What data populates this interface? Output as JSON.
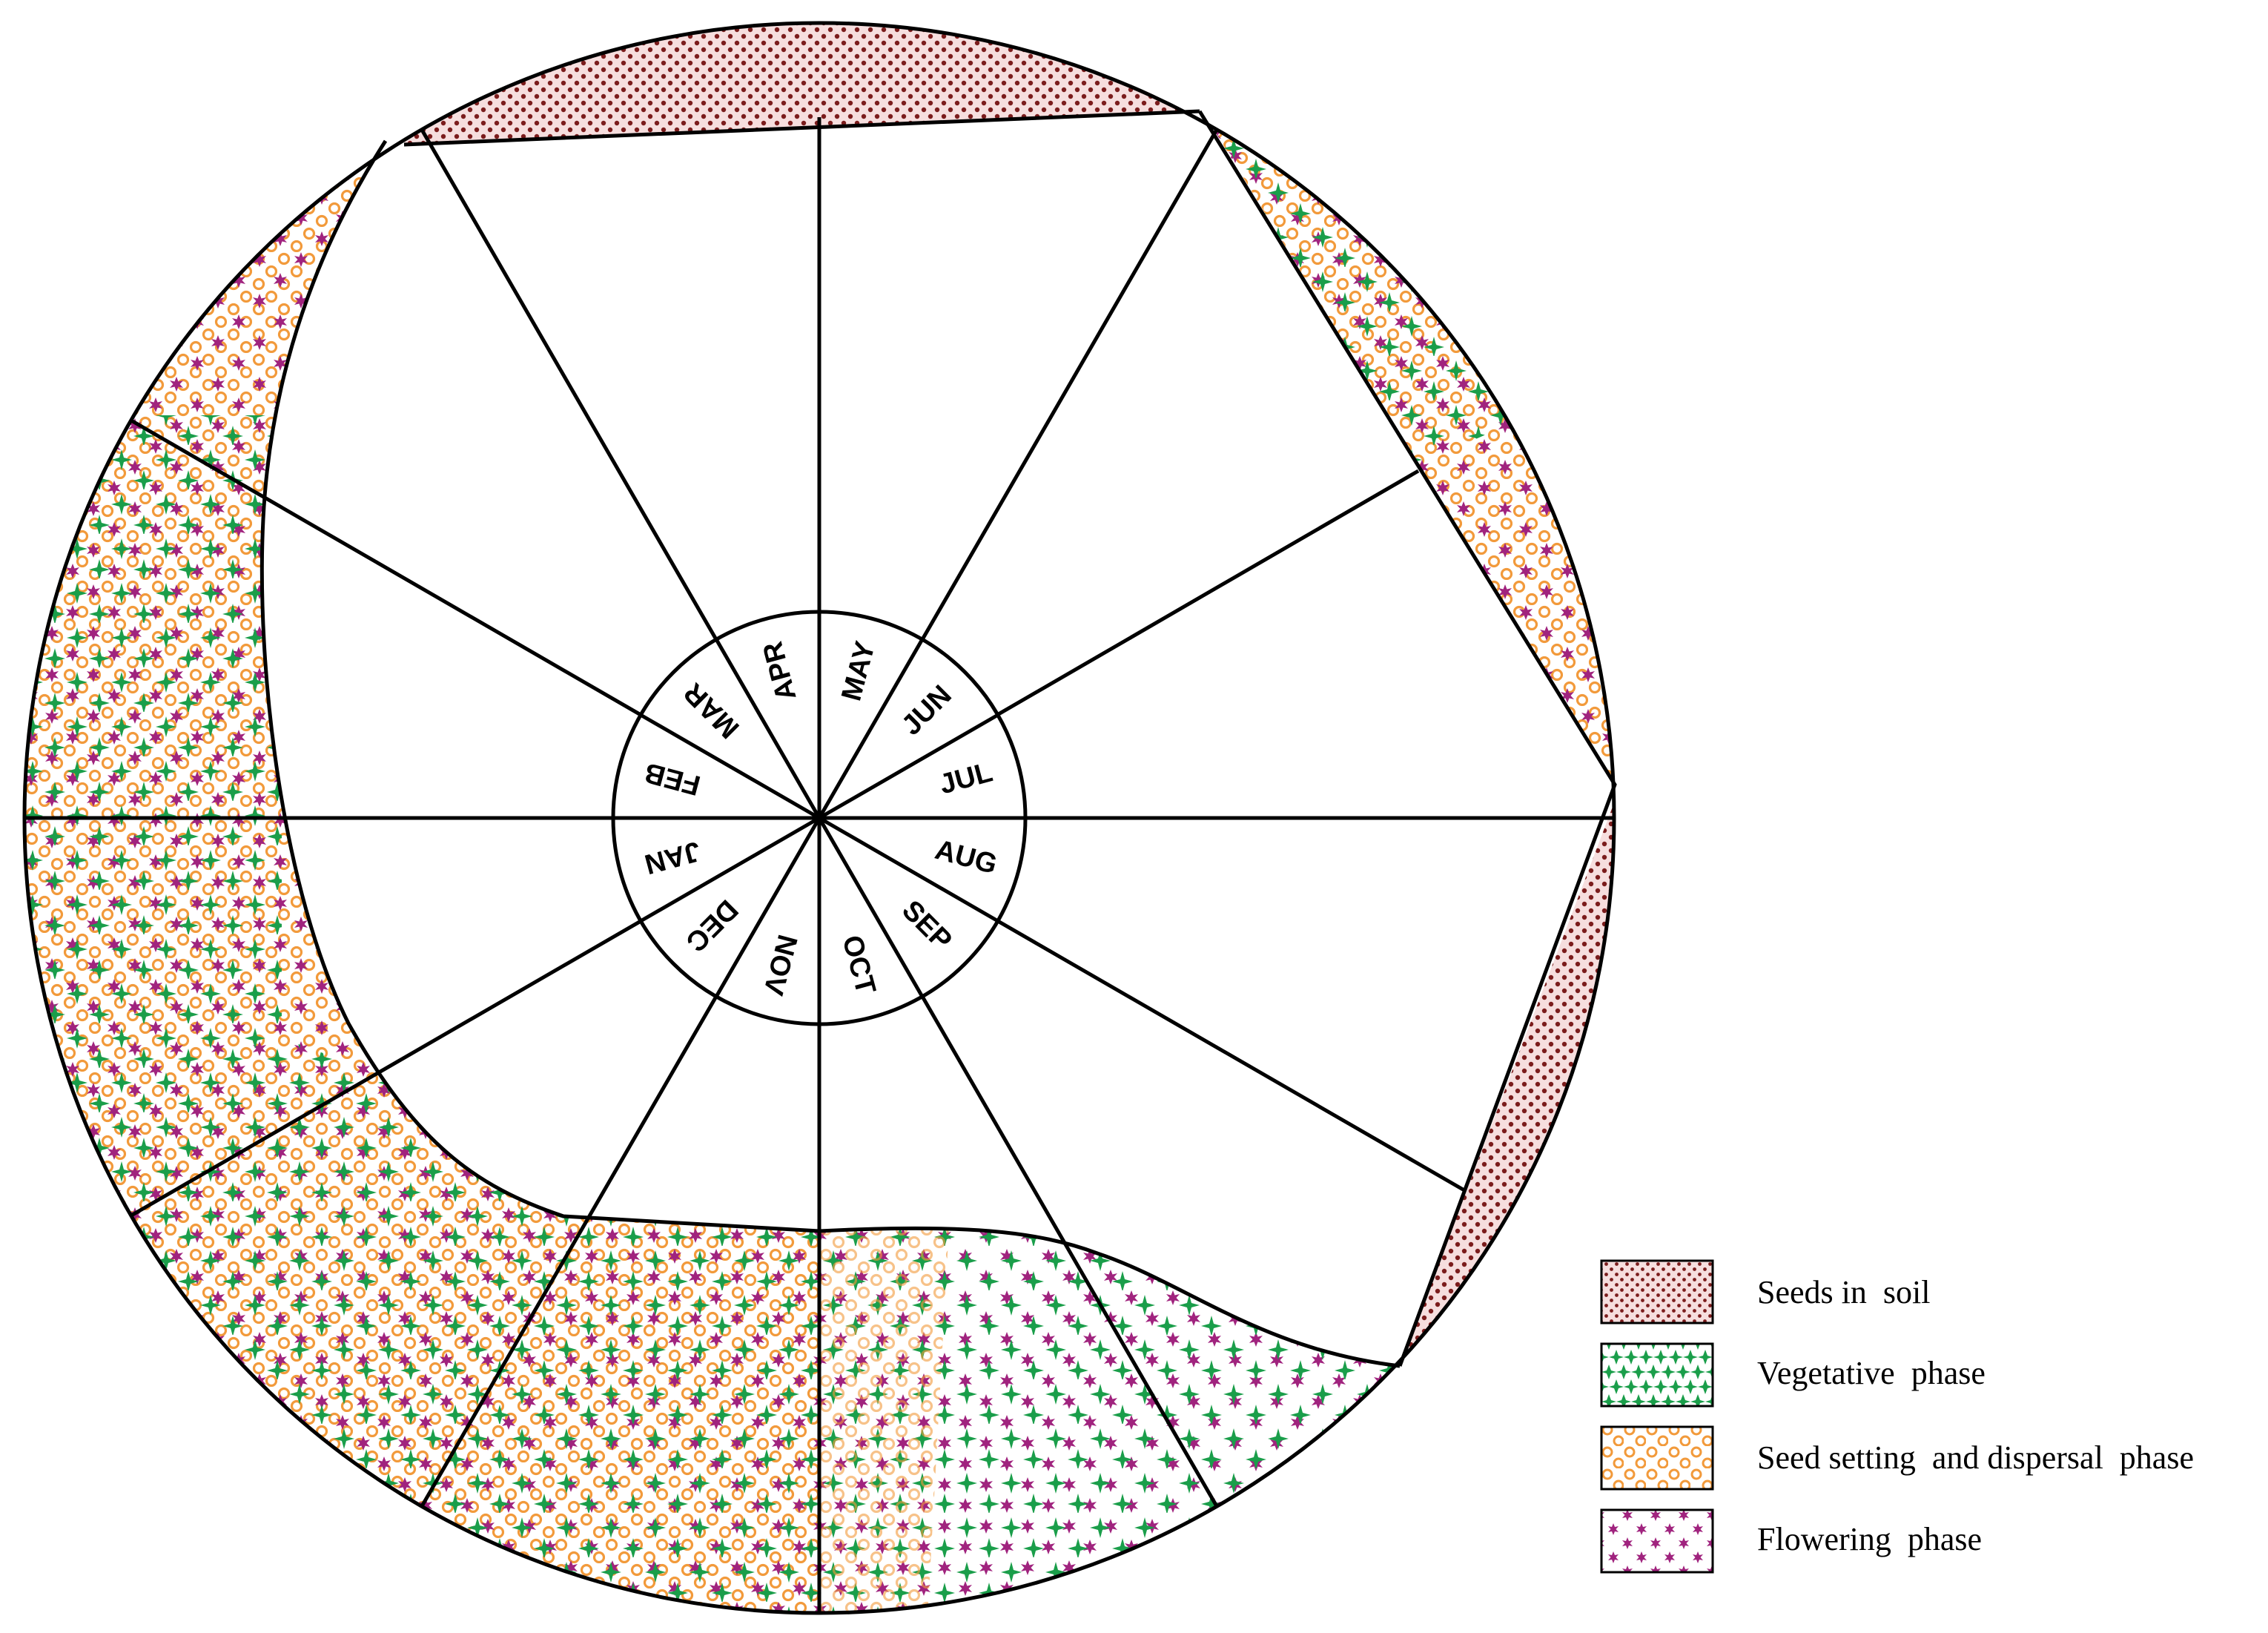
{
  "diagram": {
    "months": [
      "JAN",
      "FEB",
      "MAR",
      "APR",
      "MAY",
      "JUN",
      "JUL",
      "AUG",
      "SEP",
      "OCT",
      "NOV",
      "DEC"
    ],
    "colors": {
      "seeds": "#7b1c1c",
      "seeds_bg": "#f6dede",
      "vegetative": "#1a9e4a",
      "seed_setting": "#f29a3b",
      "flowering": "#a0237e",
      "outline": "#000000"
    },
    "phases": [
      {
        "key": "seeds",
        "months": [
          "APR",
          "MAY",
          "AUG",
          "SEP"
        ]
      },
      {
        "key": "vegetative",
        "months": [
          "JUN",
          "SEP",
          "OCT",
          "NOV",
          "DEC",
          "JAN",
          "FEB"
        ]
      },
      {
        "key": "seed_setting",
        "months": [
          "JUN",
          "JUL",
          "DEC",
          "JAN",
          "FEB",
          "MAR"
        ]
      },
      {
        "key": "flowering",
        "months": [
          "JUN",
          "JUL",
          "SEP",
          "OCT",
          "NOV",
          "DEC",
          "JAN",
          "FEB",
          "MAR"
        ]
      }
    ]
  },
  "legend": {
    "items": [
      {
        "key": "seeds",
        "label": "Seeds in  soil"
      },
      {
        "key": "vegetative",
        "label": "Vegetative  phase"
      },
      {
        "key": "seed_setting",
        "label": "Seed setting  and dispersal  phase"
      },
      {
        "key": "flowering",
        "label": "Flowering  phase"
      }
    ]
  }
}
